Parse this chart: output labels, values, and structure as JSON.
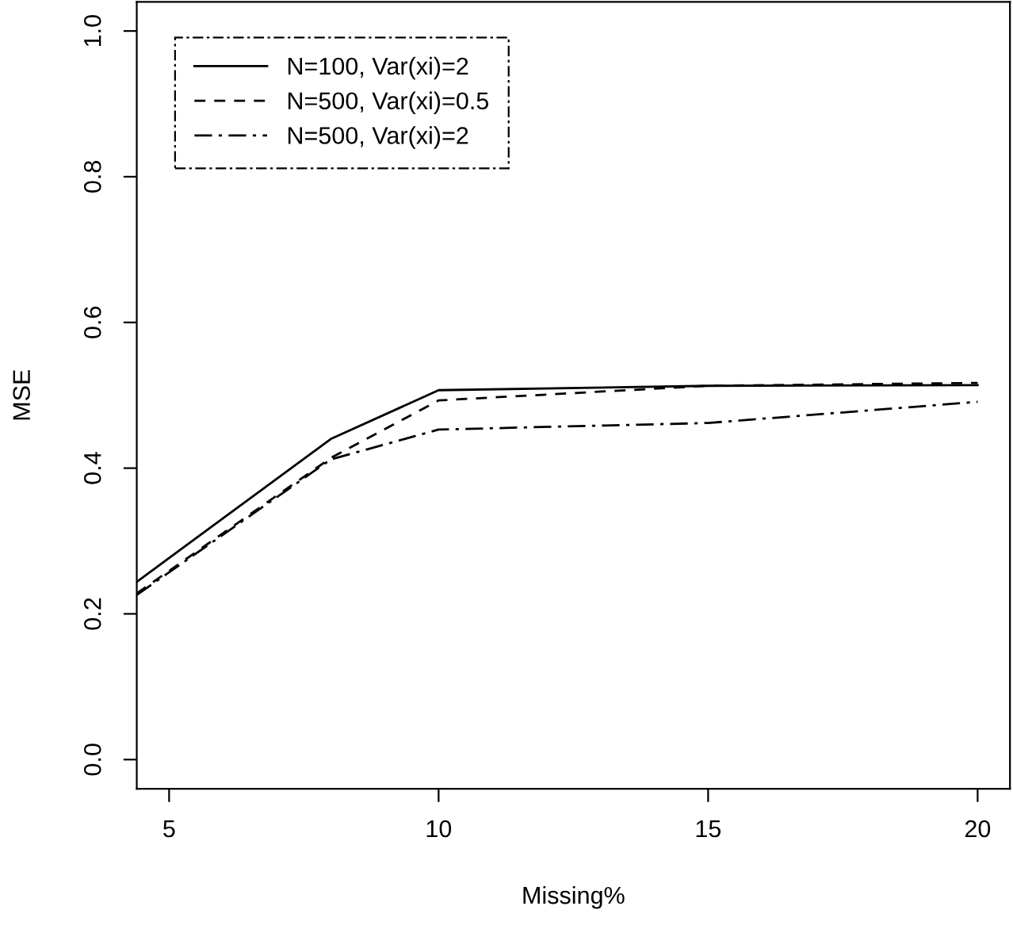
{
  "chart_data": {
    "type": "line",
    "xlabel": "Missing%",
    "ylabel": "MSE",
    "x": [
      4.4,
      8,
      10,
      15,
      20
    ],
    "series": [
      {
        "name": "N=100, Var(xi)=2",
        "color": "#000000",
        "line_style": "solid",
        "values": [
          0.244,
          0.44,
          0.507,
          0.513,
          0.514
        ]
      },
      {
        "name": "N=500, Var(xi)=0.5",
        "color": "#000000",
        "line_style": "dashed",
        "values": [
          0.228,
          0.414,
          0.493,
          0.513,
          0.517
        ]
      },
      {
        "name": "N=500, Var(xi)=2",
        "color": "#000000",
        "line_style": "dashdot",
        "values": [
          0.226,
          0.412,
          0.453,
          0.462,
          0.491
        ]
      }
    ],
    "xlim": [
      4.4,
      20.6
    ],
    "xticks": [
      5,
      10,
      15,
      20
    ],
    "ylim": [
      -0.04,
      1.04
    ],
    "yticks": [
      {
        "value": 0,
        "label": "0.0"
      },
      0.2,
      0.4,
      0.6,
      0.8,
      {
        "value": 1,
        "label": "1.0"
      }
    ],
    "grid": false,
    "legend": "top left",
    "marker": "none"
  }
}
